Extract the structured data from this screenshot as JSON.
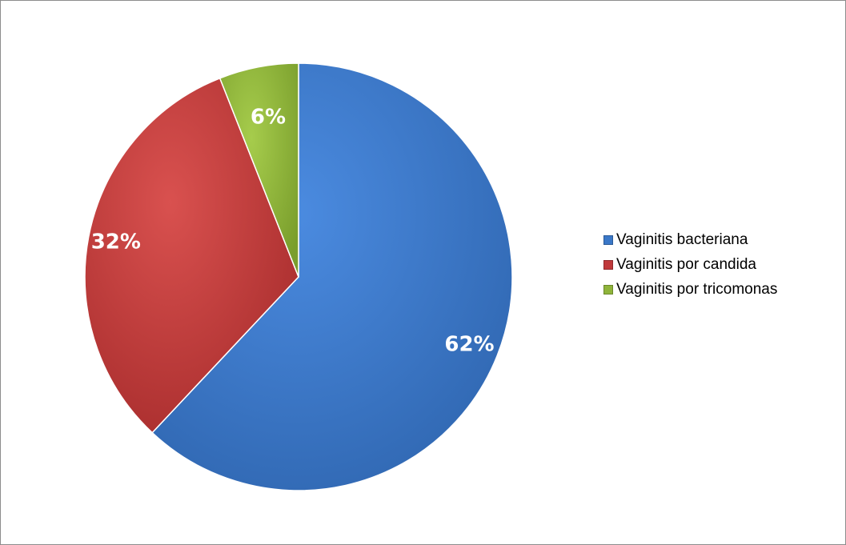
{
  "chart_data": {
    "type": "pie",
    "title": "",
    "slices": [
      {
        "label": "Vaginitis bacteriana",
        "value": 62,
        "display": "62%",
        "color": "#3a78c8"
      },
      {
        "label": "Vaginitis por candida",
        "value": 32,
        "display": "32%",
        "color": "#c0393b"
      },
      {
        "label": "Vaginitis por tricomonas",
        "value": 6,
        "display": "6%",
        "color": "#8fb43a"
      }
    ],
    "start_angle_deg": 0,
    "direction": "clockwise",
    "legend_position": "right"
  }
}
